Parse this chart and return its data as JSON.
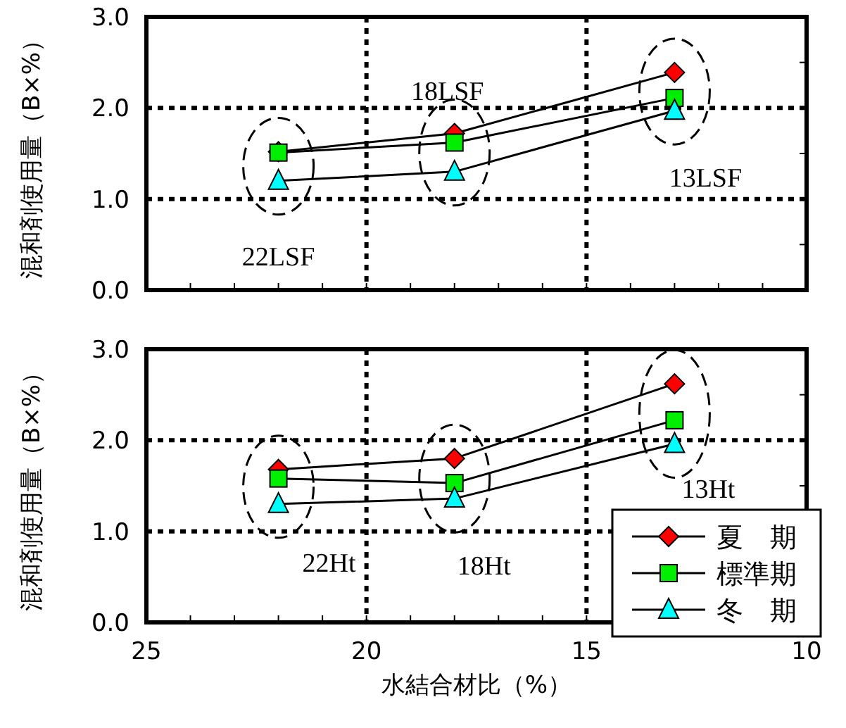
{
  "chart_data": [
    {
      "type": "line",
      "ylabel": "混和剤使用量（B×%）",
      "x": [
        22,
        18,
        13
      ],
      "xlim": [
        25,
        10
      ],
      "xticks": [
        25,
        {
          "value": 24,
          "label": null
        },
        {
          "value": 23,
          "label": null
        },
        {
          "value": 22,
          "label": null
        },
        {
          "value": 21,
          "label": null
        },
        20,
        {
          "value": 19,
          "label": null
        },
        {
          "value": 18,
          "label": null
        },
        {
          "value": 17,
          "label": null
        },
        {
          "value": 16,
          "label": null
        },
        15,
        {
          "value": 14,
          "label": null
        },
        {
          "value": 13,
          "label": null
        },
        {
          "value": 12,
          "label": null
        },
        {
          "value": 11,
          "label": null
        },
        10
      ],
      "ylim": [
        0,
        3
      ],
      "yticks": [
        {
          "value": 0,
          "label": "0.0"
        },
        {
          "value": 0.5,
          "label": null
        },
        {
          "value": 1,
          "label": "1.0"
        },
        {
          "value": 1.5,
          "label": null
        },
        {
          "value": 2,
          "label": "2.0"
        },
        {
          "value": 2.5,
          "label": null
        },
        {
          "value": 3,
          "label": "3.0"
        }
      ],
      "grid": true,
      "tick_labels": "y",
      "line_style": "solid",
      "series": [
        {
          "color": "#ff0000",
          "marker": "diamond",
          "values": [
            1.52,
            1.72,
            2.39
          ]
        },
        {
          "color": "#00ee00",
          "marker": "square",
          "values": [
            1.51,
            1.62,
            2.11
          ]
        },
        {
          "color": "#00ffff",
          "marker": "triangle",
          "values": [
            1.2,
            1.3,
            1.97
          ]
        }
      ],
      "annotations": [
        "22LSF",
        "18LSF",
        "13LSF"
      ]
    },
    {
      "type": "line",
      "xlabel": "水結合材比（%）",
      "ylabel": "混和剤使用量（B×%）",
      "x": [
        22,
        18,
        13
      ],
      "xlim": [
        25,
        10
      ],
      "xticks": [
        25,
        {
          "value": 24,
          "label": null
        },
        {
          "value": 23,
          "label": null
        },
        {
          "value": 22,
          "label": null
        },
        {
          "value": 21,
          "label": null
        },
        20,
        {
          "value": 19,
          "label": null
        },
        {
          "value": 18,
          "label": null
        },
        {
          "value": 17,
          "label": null
        },
        {
          "value": 16,
          "label": null
        },
        15,
        {
          "value": 14,
          "label": null
        },
        {
          "value": 13,
          "label": null
        },
        {
          "value": 12,
          "label": null
        },
        {
          "value": 11,
          "label": null
        },
        10
      ],
      "ylim": [
        0,
        3
      ],
      "yticks": [
        {
          "value": 0,
          "label": "0.0"
        },
        {
          "value": 0.5,
          "label": null
        },
        {
          "value": 1,
          "label": "1.0"
        },
        {
          "value": 1.5,
          "label": null
        },
        {
          "value": 2,
          "label": "2.0"
        },
        {
          "value": 2.5,
          "label": null
        },
        {
          "value": 3,
          "label": "3.0"
        }
      ],
      "grid": true,
      "legend": "bottom right",
      "line_style": "solid",
      "series": [
        {
          "name": "夏　期",
          "color": "#ff0000",
          "marker": "diamond",
          "values": [
            1.68,
            1.8,
            2.62
          ]
        },
        {
          "name": "標準期",
          "color": "#00ee00",
          "marker": "square",
          "values": [
            1.58,
            1.53,
            2.22
          ]
        },
        {
          "name": "冬　期",
          "color": "#00ffff",
          "marker": "triangle",
          "values": [
            1.3,
            1.36,
            1.96
          ]
        }
      ],
      "annotations": [
        "22Ht",
        "18Ht",
        "13Ht"
      ]
    }
  ]
}
